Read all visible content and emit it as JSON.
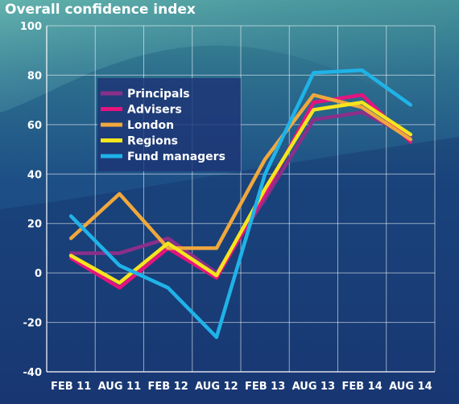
{
  "chart_data": {
    "type": "line",
    "title": "Overall confidence index",
    "xlabel": "",
    "ylabel": "",
    "categories": [
      "FEB 11",
      "AUG 11",
      "FEB 12",
      "AUG 12",
      "FEB 13",
      "AUG 13",
      "FEB 14",
      "AUG 14"
    ],
    "ylim": [
      -40,
      100
    ],
    "yticks": [
      100,
      80,
      60,
      40,
      20,
      0,
      -20,
      -40
    ],
    "grid": true,
    "legend_position": "top-left",
    "series": [
      {
        "name": "Principals",
        "color": "#8b2f8a",
        "values": [
          8,
          8,
          14,
          0,
          30,
          62,
          65,
          55
        ]
      },
      {
        "name": "Advisers",
        "color": "#e4147e",
        "values": [
          6,
          -6,
          10,
          -2,
          32,
          69,
          72,
          53
        ]
      },
      {
        "name": "London",
        "color": "#f0a83c",
        "values": [
          14,
          32,
          10,
          10,
          46,
          72,
          67,
          54
        ]
      },
      {
        "name": "Regions",
        "color": "#f5e51e",
        "values": [
          7,
          -4,
          12,
          -1,
          34,
          66,
          69,
          56
        ]
      },
      {
        "name": "Fund managers",
        "color": "#1fb3e8",
        "values": [
          23,
          3,
          -6,
          -26,
          40,
          81,
          82,
          68
        ]
      }
    ]
  }
}
